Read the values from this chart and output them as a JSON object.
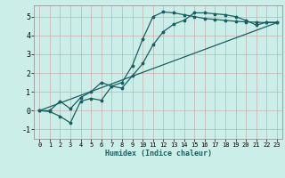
{
  "title": "",
  "xlabel": "Humidex (Indice chaleur)",
  "ylabel": "",
  "bg_color": "#cceee8",
  "grid_color_major": "#c8a0a0",
  "grid_color_minor": "#ddc8c8",
  "line_color": "#1a6060",
  "xlim": [
    -0.5,
    23.5
  ],
  "ylim": [
    -1.5,
    5.6
  ],
  "yticks": [
    -1,
    0,
    1,
    2,
    3,
    4,
    5
  ],
  "xticks": [
    0,
    1,
    2,
    3,
    4,
    5,
    6,
    7,
    8,
    9,
    10,
    11,
    12,
    13,
    14,
    15,
    16,
    17,
    18,
    19,
    20,
    21,
    22,
    23
  ],
  "line1_x": [
    0,
    1,
    2,
    3,
    4,
    5,
    6,
    7,
    8,
    9,
    10,
    11,
    12,
    13,
    14,
    15,
    16,
    17,
    18,
    19,
    20,
    21,
    22,
    23
  ],
  "line1_y": [
    0.0,
    -0.05,
    -0.3,
    -0.65,
    0.5,
    0.65,
    0.55,
    1.3,
    1.2,
    1.85,
    2.5,
    3.5,
    4.2,
    4.6,
    4.8,
    5.2,
    5.2,
    5.15,
    5.1,
    5.0,
    4.8,
    4.55,
    4.7,
    4.7
  ],
  "line2_x": [
    0,
    1,
    2,
    3,
    4,
    5,
    6,
    7,
    8,
    9,
    10,
    11,
    12,
    13,
    14,
    15,
    16,
    17,
    18,
    19,
    20,
    21,
    22,
    23
  ],
  "line2_y": [
    0.0,
    0.0,
    0.5,
    0.1,
    0.7,
    1.0,
    1.5,
    1.3,
    1.5,
    2.4,
    3.8,
    5.0,
    5.25,
    5.2,
    5.1,
    5.0,
    4.9,
    4.85,
    4.8,
    4.75,
    4.72,
    4.7,
    4.68,
    4.68
  ],
  "line3_x": [
    0,
    23
  ],
  "line3_y": [
    0.0,
    4.68
  ],
  "marker_size": 2.5,
  "linewidth": 0.9
}
